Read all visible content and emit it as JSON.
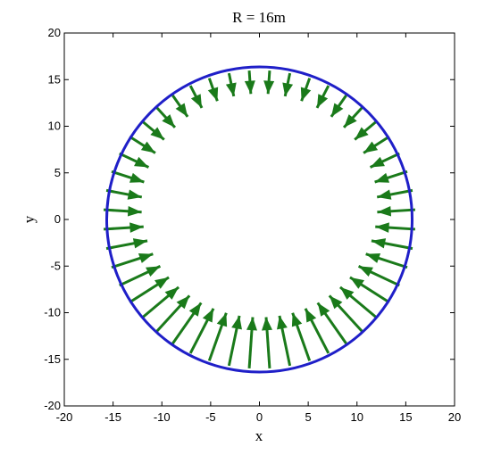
{
  "chart_data": {
    "type": "quiver",
    "title": "R = 16m",
    "xlabel": "x",
    "ylabel": "y",
    "xlim": [
      -20,
      20
    ],
    "ylim": [
      -20,
      20
    ],
    "xticks": [
      -20,
      -15,
      -10,
      -5,
      0,
      5,
      10,
      15,
      20
    ],
    "yticks": [
      -20,
      -15,
      -10,
      -5,
      0,
      5,
      10,
      15,
      20
    ],
    "grid": false,
    "legend": "none",
    "circle": {
      "center": [
        0,
        0
      ],
      "radius": 16,
      "color": "#1f1fc8"
    },
    "arrows": {
      "count": 48,
      "color": "#1a7a1a",
      "direction": "inward",
      "length_top": 2.5,
      "length_bottom": 5.5,
      "note_values": "arrow tails on circle of radius 16; length varies from ~2.5 at top to ~5.5 at bottom"
    }
  }
}
